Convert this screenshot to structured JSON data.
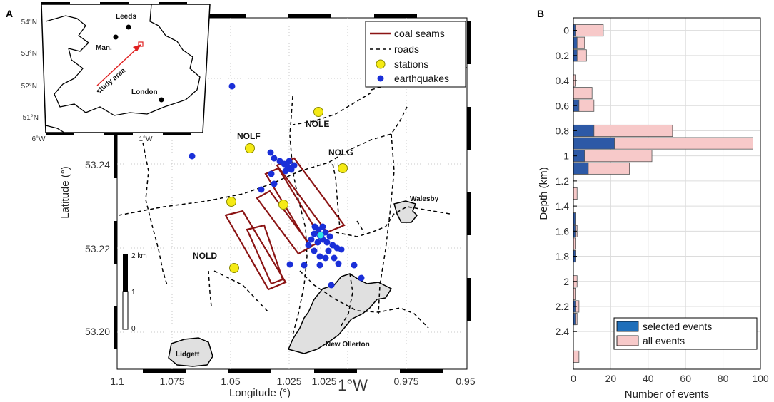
{
  "panel_a": {
    "letter": "A",
    "inset": {
      "lat_labels": [
        "54°N",
        "53°N",
        "52°N",
        "51°N"
      ],
      "lon_labels": [
        "6°W",
        "1°W"
      ],
      "cities": [
        "Leeds",
        "Man.",
        "London"
      ],
      "arrow_label": "study area"
    },
    "map": {
      "x_label": "Longitude (°)",
      "x_ticks": [
        "1.1",
        "1.075",
        "1.05",
        "1.025",
        "1.025",
        "1°W",
        "0.975",
        "0.95"
      ],
      "y_label": "Latitude (°)",
      "y_ticks": [
        "53.24",
        "53.22",
        "53.20"
      ],
      "stations": [
        "NOLE",
        "NOLF",
        "NOLG",
        "NOLD"
      ],
      "places": [
        "Walesby",
        "New Ollerton",
        "Lidgett"
      ],
      "scale_labels": [
        "2 km",
        "1",
        "0"
      ],
      "legend": [
        "coal seams",
        "roads",
        "stations",
        "earthquakes"
      ]
    }
  },
  "chart_data": {
    "type": "bar",
    "panel_letter": "B",
    "orientation": "horizontal",
    "title": "",
    "xlabel": "Number of events",
    "ylabel": "Depth (km)",
    "xlim": [
      0,
      100
    ],
    "x_ticks": [
      "0",
      "20",
      "40",
      "60",
      "80",
      "100"
    ],
    "ylim": [
      -0.1,
      2.7
    ],
    "y_ticks": [
      "0",
      "0.2",
      "0.4",
      "0.6",
      "0.8",
      "1",
      "1.2",
      "1.4",
      "1.6",
      "1.8",
      "2",
      "2.2",
      "2.4"
    ],
    "bin_width_km": 0.1,
    "depths": [
      0,
      0.1,
      0.2,
      0.4,
      0.5,
      0.6,
      0.8,
      0.9,
      1.0,
      1.1,
      1.3,
      1.5,
      1.6,
      1.7,
      1.8,
      2.0,
      2.1,
      2.2,
      2.3,
      2.6
    ],
    "series": [
      {
        "name": "selected events",
        "color": "#2d59a6",
        "values": [
          1,
          2,
          2,
          0,
          0,
          3,
          11,
          22,
          6,
          8,
          0,
          1,
          1,
          0,
          1,
          0,
          0,
          1,
          1,
          0
        ]
      },
      {
        "name": "all events",
        "color": "#f7c9c9",
        "values": [
          16,
          6,
          7,
          1,
          10,
          11,
          53,
          96,
          42,
          30,
          2,
          1,
          2,
          1,
          1,
          2,
          1,
          3,
          2,
          3
        ]
      }
    ],
    "legend": [
      "selected events",
      "all events"
    ],
    "legend_position": "bottom-right"
  }
}
